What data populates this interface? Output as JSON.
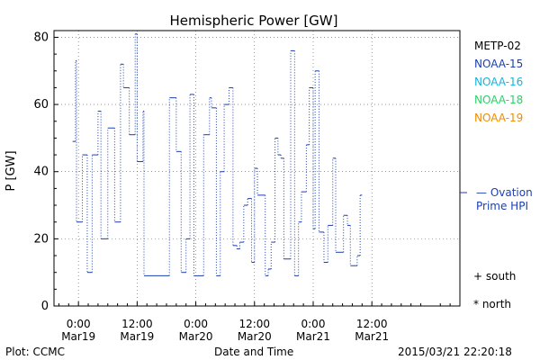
{
  "chart_data": {
    "type": "line",
    "title": "Hemispheric Power [GW]",
    "ylabel": "P [GW]",
    "xlabel": "Date and Time",
    "ylim": [
      0,
      82
    ],
    "yticks": [
      0,
      20,
      40,
      60,
      80
    ],
    "xlim_hours": [
      -5,
      78
    ],
    "xticks": [
      {
        "t": 0,
        "line1": "0:00",
        "line2": "Mar19"
      },
      {
        "t": 12,
        "line1": "12:00",
        "line2": "Mar19"
      },
      {
        "t": 24,
        "line1": "0:00",
        "line2": "Mar20"
      },
      {
        "t": 36,
        "line1": "12:00",
        "line2": "Mar20"
      },
      {
        "t": 48,
        "line1": "0:00",
        "line2": "Mar21"
      },
      {
        "t": 60,
        "line1": "12:00",
        "line2": "Mar21"
      }
    ],
    "legend": [
      {
        "name": "METP-02",
        "color": "#000000"
      },
      {
        "name": "NOAA-15",
        "color": "#1c3fb0"
      },
      {
        "name": "NOAA-16",
        "color": "#19b4d8"
      },
      {
        "name": "NOAA-18",
        "color": "#2bd06a"
      },
      {
        "name": "NOAA-19",
        "color": "#f08c00"
      }
    ],
    "model_label_line1": "— Ovation",
    "model_label_line2": "Prime HPI",
    "model_color": "#1c3fb0",
    "marker_south": "+ south",
    "marker_north": "* north",
    "series": [
      {
        "name": "NOAA-15",
        "color": "#1c3fb0",
        "steps": [
          [
            -1.2,
            49
          ],
          [
            -0.6,
            73
          ],
          [
            -0.4,
            25
          ],
          [
            0.8,
            45
          ],
          [
            1.8,
            10
          ],
          [
            2.8,
            45
          ],
          [
            4.0,
            58
          ],
          [
            4.6,
            20
          ],
          [
            6.0,
            53
          ],
          [
            7.4,
            25
          ],
          [
            8.6,
            72
          ],
          [
            9.2,
            65
          ],
          [
            10.4,
            51
          ],
          [
            11.6,
            81
          ],
          [
            12.0,
            43
          ],
          [
            13.2,
            58
          ],
          [
            13.4,
            9
          ],
          [
            18.6,
            62
          ],
          [
            20.0,
            46
          ],
          [
            21.0,
            10
          ],
          [
            22.0,
            20
          ],
          [
            22.8,
            63
          ],
          [
            23.6,
            9
          ],
          [
            25.6,
            51
          ],
          [
            26.8,
            62
          ],
          [
            27.2,
            59
          ],
          [
            28.2,
            9
          ],
          [
            29.0,
            40
          ],
          [
            29.8,
            60
          ],
          [
            30.8,
            65
          ],
          [
            31.6,
            18
          ],
          [
            32.4,
            17
          ],
          [
            33.0,
            19
          ],
          [
            33.8,
            30
          ],
          [
            34.6,
            32
          ],
          [
            35.4,
            13
          ],
          [
            36.0,
            41
          ],
          [
            36.6,
            33
          ],
          [
            38.2,
            9
          ],
          [
            38.8,
            11
          ],
          [
            39.4,
            19
          ],
          [
            40.2,
            50
          ],
          [
            40.8,
            45
          ],
          [
            41.4,
            44
          ],
          [
            42.0,
            14
          ],
          [
            43.4,
            76
          ],
          [
            44.2,
            9
          ],
          [
            45.0,
            25
          ],
          [
            45.6,
            34
          ],
          [
            46.6,
            48
          ],
          [
            47.2,
            65
          ],
          [
            48.0,
            23
          ],
          [
            48.4,
            70
          ],
          [
            49.2,
            22
          ],
          [
            50.2,
            13
          ],
          [
            51.0,
            24
          ],
          [
            52.0,
            44
          ],
          [
            52.6,
            16
          ],
          [
            54.2,
            27
          ],
          [
            55.0,
            24
          ],
          [
            55.6,
            12
          ],
          [
            57.0,
            15
          ],
          [
            57.6,
            33
          ],
          [
            58.0,
            33
          ]
        ]
      }
    ]
  },
  "footer": {
    "left": "Plot: CCMC",
    "center": "Date and Time",
    "right": "2015/03/21 22:20:18"
  }
}
